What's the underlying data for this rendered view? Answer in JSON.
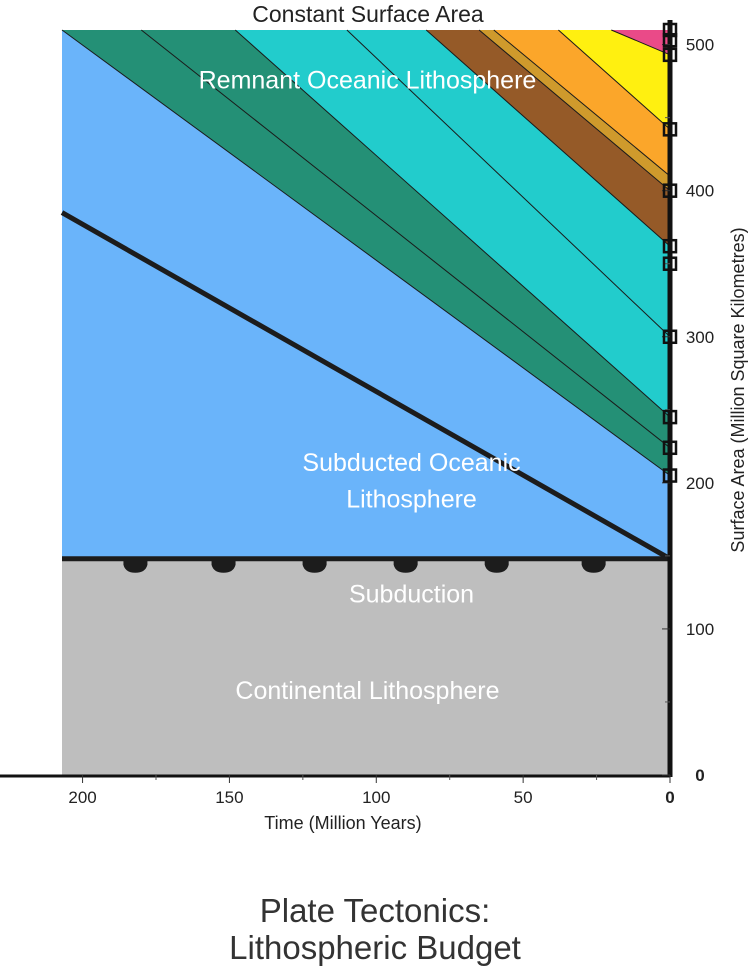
{
  "chart_data": {
    "type": "area",
    "title_top": "Constant Surface Area",
    "title_main": [
      "Plate Tectonics:",
      "Lithospheric Budget"
    ],
    "xlabel": "Time (Million Years)",
    "ylabel": "Surface Area (Million Square Kilometres)",
    "xlim": [
      207,
      0
    ],
    "ylim": [
      0,
      510
    ],
    "x_ticks": [
      {
        "value": 200,
        "label": "200"
      },
      {
        "value": 150,
        "label": "150"
      },
      {
        "value": 100,
        "label": "100"
      },
      {
        "value": 50,
        "label": "50"
      },
      {
        "value": 0,
        "label": "0"
      }
    ],
    "y_ticks": [
      {
        "value": 0,
        "label": "0"
      },
      {
        "value": 100,
        "label": "100"
      },
      {
        "value": 200,
        "label": "200"
      },
      {
        "value": 300,
        "label": "300"
      },
      {
        "value": 400,
        "label": "400"
      },
      {
        "value": 500,
        "label": "500"
      }
    ],
    "right_axis_markers": [
      510,
      503,
      493,
      442,
      400,
      362,
      350,
      300,
      245,
      224,
      205
    ],
    "subduction_level": 148,
    "subduction_marker_x": [
      182,
      152,
      121,
      90,
      59,
      26
    ],
    "subducted_boundary": [
      [
        207,
        385
      ],
      [
        0,
        148
      ]
    ],
    "layers": [
      {
        "name": "continental",
        "color": "#bebebe",
        "polygon": [
          [
            207,
            0
          ],
          [
            0,
            0
          ],
          [
            0,
            148
          ],
          [
            207,
            148
          ]
        ]
      },
      {
        "name": "subducted",
        "color": "#1e88e8",
        "polygon": [
          [
            207,
            148
          ],
          [
            0,
            148
          ],
          [
            207,
            385
          ]
        ]
      },
      {
        "name": "band-1",
        "color": "#6ab4fa",
        "polygon": [
          [
            207,
            148
          ],
          [
            0,
            148
          ],
          [
            0,
            205
          ],
          [
            207,
            510
          ]
        ]
      },
      {
        "name": "band-2",
        "color": "#249076",
        "polygon": [
          [
            0,
            205
          ],
          [
            0,
            245
          ],
          [
            148,
            510
          ],
          [
            207,
            510
          ]
        ]
      },
      {
        "name": "band-3",
        "color": "#22cccc",
        "polygon": [
          [
            0,
            245
          ],
          [
            0,
            362
          ],
          [
            83,
            510
          ],
          [
            148,
            510
          ]
        ]
      },
      {
        "name": "band-4",
        "color": "#955a28",
        "polygon": [
          [
            0,
            362
          ],
          [
            0,
            400
          ],
          [
            65,
            510
          ],
          [
            83,
            510
          ]
        ]
      },
      {
        "name": "band-5",
        "color": "#cf9a2c",
        "polygon": [
          [
            0,
            400
          ],
          [
            0,
            410
          ],
          [
            60,
            510
          ],
          [
            65,
            510
          ]
        ]
      },
      {
        "name": "band-6",
        "color": "#fba62a",
        "polygon": [
          [
            0,
            410
          ],
          [
            0,
            442
          ],
          [
            38,
            510
          ],
          [
            60,
            510
          ]
        ]
      },
      {
        "name": "band-7",
        "color": "#fff010",
        "polygon": [
          [
            0,
            442
          ],
          [
            0,
            493
          ],
          [
            20,
            510
          ],
          [
            38,
            510
          ]
        ]
      },
      {
        "name": "band-8",
        "color": "#ea4a88",
        "polygon": [
          [
            0,
            493
          ],
          [
            0,
            510
          ],
          [
            20,
            510
          ]
        ]
      }
    ],
    "band_lines": [
      [
        [
          0,
          205
        ],
        [
          207,
          510
        ]
      ],
      [
        [
          0,
          224
        ],
        [
          180,
          510
        ]
      ],
      [
        [
          0,
          245
        ],
        [
          148,
          510
        ]
      ],
      [
        [
          0,
          300
        ],
        [
          110,
          510
        ]
      ],
      [
        [
          0,
          362
        ],
        [
          83,
          510
        ]
      ],
      [
        [
          0,
          400
        ],
        [
          65,
          510
        ]
      ],
      [
        [
          0,
          410
        ],
        [
          60,
          510
        ]
      ],
      [
        [
          0,
          442
        ],
        [
          38,
          510
        ]
      ],
      [
        [
          0,
          493
        ],
        [
          20,
          510
        ]
      ]
    ],
    "annotations": [
      {
        "text": "Remnant Oceanic Lithosphere",
        "x": 103,
        "y": 470
      },
      {
        "text": "Subducted Oceanic",
        "x": 88,
        "y": 208
      },
      {
        "text": "Lithosphere",
        "x": 88,
        "y": 183
      },
      {
        "text": "Subduction",
        "x": 88,
        "y": 118
      },
      {
        "text": "Continental Lithosphere",
        "x": 103,
        "y": 52
      }
    ]
  }
}
